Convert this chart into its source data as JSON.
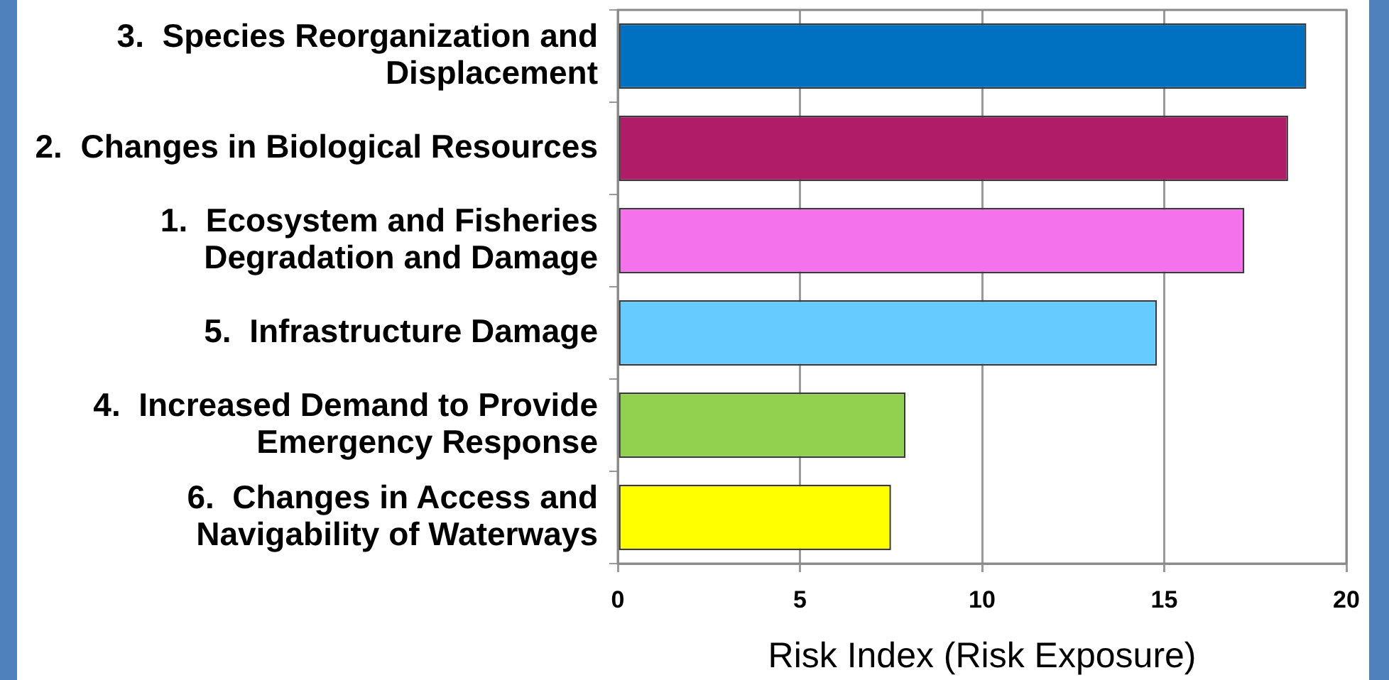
{
  "chart_data": {
    "type": "bar",
    "orientation": "horizontal",
    "categories": [
      "3.  Species Reorganization and Displacement",
      "2.  Changes in Biological Resources",
      "1.  Ecosystem and Fisheries Degradation and Damage",
      "5.  Infrastructure Damage",
      "4.  Increased Demand to Provide Emergency Response",
      "6.  Changes in Access and Navigability of Waterways"
    ],
    "values": [
      18.9,
      18.4,
      17.2,
      14.8,
      7.9,
      7.5
    ],
    "colors": [
      "#0070c0",
      "#b01c68",
      "#f472ec",
      "#66ccff",
      "#92d050",
      "#ffff00"
    ],
    "xlabel": "Risk Index (Risk Exposure)",
    "xlim": [
      0,
      20
    ],
    "xticks": [
      0,
      5,
      10,
      15,
      20
    ],
    "grid": "x"
  }
}
